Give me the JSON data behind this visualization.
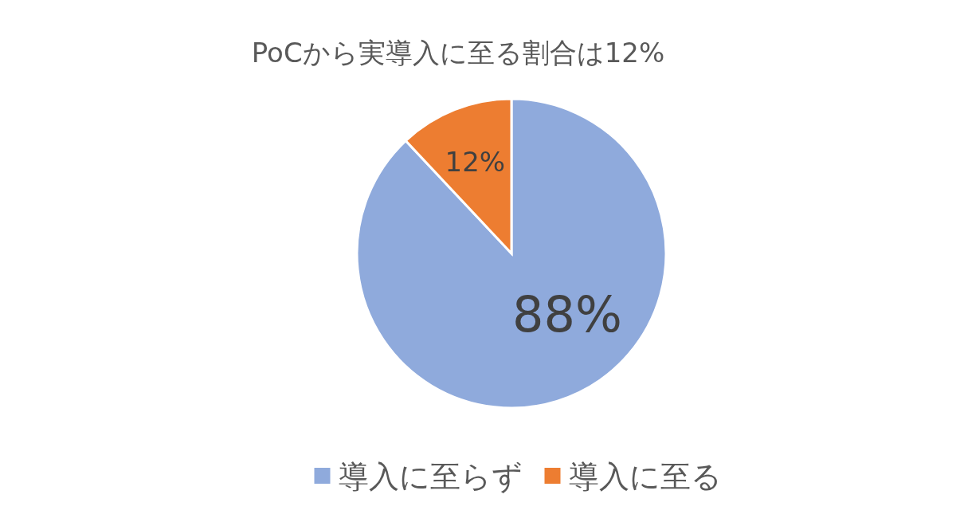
{
  "chart_data": {
    "type": "pie",
    "title": "PoCから実導入に至る割合は12%",
    "categories": [
      "導入に至らず",
      "導入に至る"
    ],
    "values": [
      88,
      12
    ],
    "colors": [
      "#8faadc",
      "#ed7d31"
    ],
    "value_labels": [
      "88%",
      "12%"
    ],
    "legend": "bottom"
  }
}
